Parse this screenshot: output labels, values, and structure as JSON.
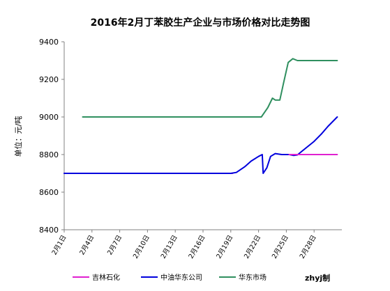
{
  "chart_data": {
    "type": "line",
    "title": "2016年2月丁苯胶生产企业与市场价格对比走势图",
    "xlabel": "",
    "ylabel": "单位：元/吨",
    "ylim": [
      8400,
      9400
    ],
    "yticks": [
      8400,
      8600,
      8800,
      9000,
      9200,
      9400
    ],
    "xlim": [
      1,
      31
    ],
    "x_tick_labels": [
      "2月1日",
      "2月4日",
      "2月7日",
      "2月10日",
      "2月13日",
      "2月16日",
      "2月19日",
      "2月22日",
      "2月25日",
      "2月28日"
    ],
    "x_tick_values": [
      1,
      4,
      7,
      10,
      13,
      16,
      19,
      22,
      25,
      28
    ],
    "grid": false,
    "legend_position": "bottom",
    "credit": "zhyj制",
    "series": [
      {
        "name": "吉林石化",
        "color": "#e020d0",
        "points": [
          [
            1,
            8700
          ],
          [
            19,
            8700
          ],
          [
            19.2,
            8700
          ]
        ],
        "segments_after": [
          [
            [
              25.3,
              8800
            ],
            [
              30.5,
              8800
            ]
          ]
        ]
      },
      {
        "name": "中油华东公司",
        "color": "#0000dd",
        "points": [
          [
            1,
            8700
          ],
          [
            19,
            8700
          ],
          [
            19.6,
            8705
          ],
          [
            20.5,
            8735
          ],
          [
            21.2,
            8765
          ],
          [
            22,
            8790
          ],
          [
            22.4,
            8800
          ],
          [
            22.5,
            8700
          ],
          [
            22.9,
            8730
          ],
          [
            23.3,
            8790
          ],
          [
            23.8,
            8805
          ],
          [
            24.5,
            8800
          ],
          [
            25.3,
            8800
          ],
          [
            25.8,
            8795
          ],
          [
            26.2,
            8798
          ],
          [
            27,
            8830
          ],
          [
            28,
            8870
          ],
          [
            28.8,
            8910
          ],
          [
            29.5,
            8950
          ],
          [
            30.5,
            9000
          ]
        ]
      },
      {
        "name": "华东市场",
        "color": "#2f8f5f",
        "points": [
          [
            3,
            9000
          ],
          [
            22.3,
            9000
          ],
          [
            23,
            9050
          ],
          [
            23.5,
            9100
          ],
          [
            23.8,
            9090
          ],
          [
            24.3,
            9090
          ],
          [
            24.7,
            9180
          ],
          [
            25.2,
            9290
          ],
          [
            25.7,
            9310
          ],
          [
            26.2,
            9300
          ],
          [
            30.5,
            9300
          ]
        ]
      }
    ]
  }
}
